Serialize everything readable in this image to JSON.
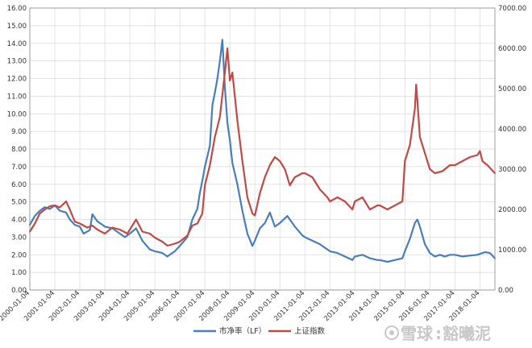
{
  "chart_data": {
    "type": "line",
    "x_ticks": [
      "2000-01-04",
      "2001-01-04",
      "2002-01-04",
      "2003-01-04",
      "2004-01-04",
      "2005-01-04",
      "2006-01-04",
      "2007-01-04",
      "2008-01-04",
      "2009-01-04",
      "2010-01-04",
      "2011-01-04",
      "2012-01-04",
      "2013-01-04",
      "2014-01-04",
      "2015-01-04",
      "2016-01-04",
      "2017-01-04",
      "2018-01-04"
    ],
    "y_left_ticks": [
      "0.00",
      "1.00",
      "2.00",
      "3.00",
      "4.00",
      "5.00",
      "6.00",
      "7.00",
      "8.00",
      "9.00",
      "10.00",
      "11.00",
      "12.00",
      "13.00",
      "14.00",
      "15.00",
      "16.00"
    ],
    "y_right_ticks": [
      "0.00",
      "1000.00",
      "2000.00",
      "3000.00",
      "4000.00",
      "5000.00",
      "6000.00",
      "7000.00"
    ],
    "ylim_left": [
      0,
      16
    ],
    "ylim_right": [
      0,
      7000
    ],
    "xlim": [
      2000.0,
      2018.6
    ],
    "grid": true,
    "legend_position": "bottom",
    "series": [
      {
        "name": "市净率（LF）",
        "axis": "left",
        "color": "#4a7ebb",
        "x": [
          2000.0,
          2000.2,
          2000.4,
          2000.6,
          2000.8,
          2001.0,
          2001.2,
          2001.45,
          2001.6,
          2001.8,
          2002.0,
          2002.15,
          2002.4,
          2002.5,
          2002.7,
          2003.0,
          2003.3,
          2003.6,
          2003.8,
          2004.0,
          2004.25,
          2004.5,
          2004.8,
          2005.0,
          2005.3,
          2005.5,
          2005.8,
          2006.0,
          2006.3,
          2006.5,
          2006.7,
          2006.8,
          2006.9,
          2007.0,
          2007.2,
          2007.3,
          2007.4,
          2007.5,
          2007.6,
          2007.7,
          2007.8,
          2007.9,
          2008.0,
          2008.1,
          2008.3,
          2008.5,
          2008.7,
          2008.9,
          2009.0,
          2009.2,
          2009.4,
          2009.6,
          2009.8,
          2010.0,
          2010.3,
          2010.6,
          2010.9,
          2011.0,
          2011.3,
          2011.6,
          2011.9,
          2012.0,
          2012.3,
          2012.6,
          2012.9,
          2013.0,
          2013.3,
          2013.6,
          2013.9,
          2014.0,
          2014.3,
          2014.6,
          2014.9,
          2015.0,
          2015.2,
          2015.4,
          2015.5,
          2015.6,
          2015.8,
          2016.0,
          2016.2,
          2016.4,
          2016.6,
          2016.8,
          2017.0,
          2017.3,
          2017.6,
          2017.9,
          2018.0,
          2018.2,
          2018.4,
          2018.6
        ],
        "y": [
          3.7,
          4.2,
          4.5,
          4.7,
          4.6,
          4.8,
          4.5,
          4.4,
          4.0,
          3.7,
          3.6,
          3.2,
          3.4,
          4.3,
          3.9,
          3.6,
          3.5,
          3.2,
          3.0,
          3.2,
          3.5,
          2.8,
          2.3,
          2.2,
          2.1,
          1.9,
          2.2,
          2.5,
          3.0,
          4.0,
          4.6,
          5.5,
          6.2,
          7.0,
          8.2,
          10.5,
          11.2,
          12.0,
          13.0,
          14.2,
          11.5,
          9.5,
          8.5,
          7.2,
          6.0,
          4.5,
          3.2,
          2.5,
          2.8,
          3.5,
          3.8,
          4.4,
          3.6,
          3.8,
          4.2,
          3.6,
          3.1,
          3.0,
          2.8,
          2.6,
          2.3,
          2.2,
          2.1,
          1.9,
          1.7,
          1.9,
          2.0,
          1.8,
          1.7,
          1.7,
          1.6,
          1.7,
          1.8,
          2.2,
          2.9,
          3.8,
          4.0,
          3.6,
          2.6,
          2.1,
          1.9,
          2.0,
          1.9,
          2.0,
          2.0,
          1.9,
          1.95,
          2.0,
          2.05,
          2.15,
          2.1,
          1.8
        ]
      },
      {
        "name": "上证指数",
        "axis": "right",
        "color": "#be4b48",
        "x": [
          2000.0,
          2000.2,
          2000.4,
          2000.6,
          2000.8,
          2001.0,
          2001.2,
          2001.45,
          2001.6,
          2001.8,
          2002.0,
          2002.3,
          2002.5,
          2002.7,
          2003.0,
          2003.3,
          2003.6,
          2003.9,
          2004.0,
          2004.25,
          2004.5,
          2004.8,
          2005.0,
          2005.3,
          2005.5,
          2005.8,
          2006.0,
          2006.3,
          2006.5,
          2006.7,
          2006.9,
          2007.0,
          2007.2,
          2007.4,
          2007.6,
          2007.8,
          2007.9,
          2008.0,
          2008.1,
          2008.3,
          2008.5,
          2008.7,
          2008.9,
          2009.0,
          2009.2,
          2009.4,
          2009.6,
          2009.8,
          2010.0,
          2010.2,
          2010.4,
          2010.6,
          2010.9,
          2011.0,
          2011.3,
          2011.6,
          2011.9,
          2012.0,
          2012.3,
          2012.6,
          2012.9,
          2013.0,
          2013.3,
          2013.6,
          2013.9,
          2014.0,
          2014.3,
          2014.6,
          2014.9,
          2015.0,
          2015.2,
          2015.4,
          2015.45,
          2015.5,
          2015.6,
          2015.8,
          2016.0,
          2016.2,
          2016.5,
          2016.8,
          2017.0,
          2017.3,
          2017.6,
          2017.9,
          2018.0,
          2018.1,
          2018.3,
          2018.6
        ],
        "y": [
          1450,
          1650,
          1900,
          2000,
          2080,
          2100,
          2050,
          2200,
          2000,
          1700,
          1650,
          1550,
          1600,
          1500,
          1400,
          1550,
          1500,
          1400,
          1500,
          1750,
          1450,
          1400,
          1300,
          1200,
          1100,
          1150,
          1200,
          1350,
          1600,
          1650,
          1900,
          2600,
          3100,
          3800,
          4300,
          5400,
          6000,
          5200,
          5400,
          4200,
          3200,
          2300,
          1900,
          1850,
          2400,
          2800,
          3100,
          3300,
          3200,
          3000,
          2600,
          2800,
          2900,
          2900,
          2800,
          2500,
          2300,
          2200,
          2300,
          2200,
          2000,
          2200,
          2300,
          2000,
          2100,
          2100,
          2000,
          2100,
          2200,
          3200,
          3600,
          4500,
          5100,
          4700,
          3800,
          3400,
          3000,
          2900,
          2950,
          3100,
          3100,
          3200,
          3300,
          3350,
          3450,
          3200,
          3100,
          2900
        ]
      }
    ]
  },
  "watermark": {
    "brand": "雪球",
    "user": "豁曦泥"
  }
}
